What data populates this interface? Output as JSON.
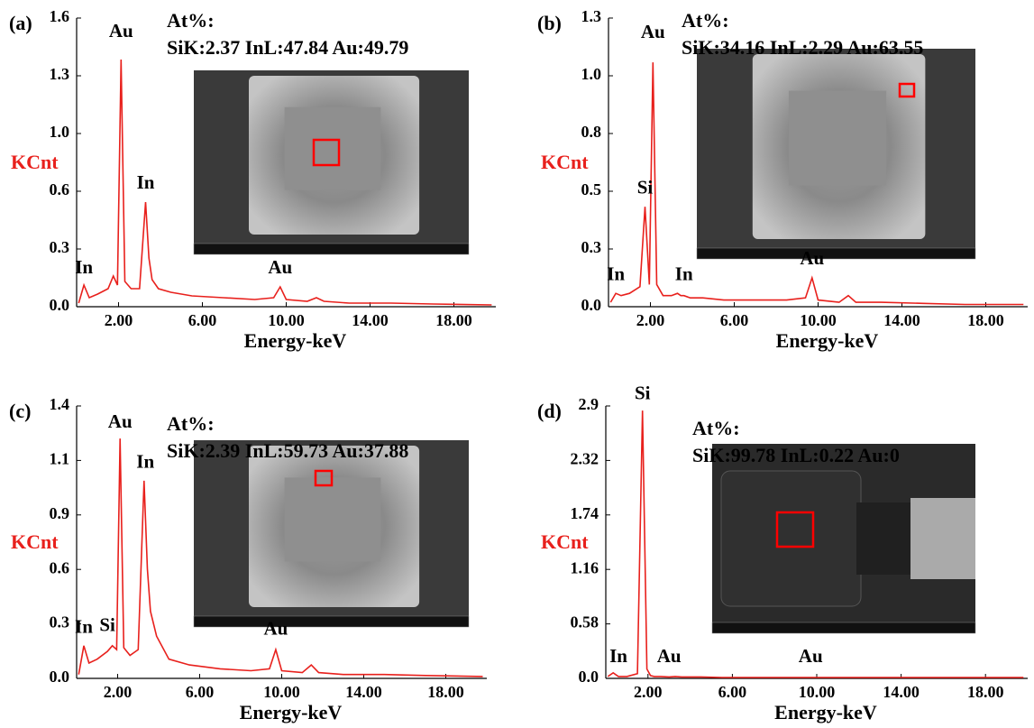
{
  "chart_data": [
    {
      "type": "line",
      "label": "(a)",
      "inset_title": "At%:",
      "inset_text": "SiK:2.37  InL:47.84  Au:49.79",
      "ylabel": "KCnt",
      "xlabel": "Energy-keV",
      "color": "#e8201c",
      "xlim": [
        0,
        20
      ],
      "ylim": [
        0,
        1.6
      ],
      "yticks": [
        {
          "value": 0,
          "label": "0.0"
        },
        {
          "value": 0.32,
          "label": "0.3"
        },
        {
          "value": 0.64,
          "label": "0.6"
        },
        {
          "value": 0.96,
          "label": "1.0"
        },
        {
          "value": 1.28,
          "label": "1.3"
        },
        {
          "value": 1.6,
          "label": "1.6"
        }
      ],
      "xticks": [
        {
          "value": 2,
          "label": "2.00"
        },
        {
          "value": 6,
          "label": "6.00"
        },
        {
          "value": 10,
          "label": "10.00"
        },
        {
          "value": 14,
          "label": "14.00"
        },
        {
          "value": 18,
          "label": "18.00"
        }
      ],
      "x": [
        0.1,
        0.35,
        0.6,
        1.0,
        1.5,
        1.75,
        1.95,
        2.12,
        2.3,
        2.6,
        3.0,
        3.29,
        3.45,
        3.6,
        3.9,
        4.5,
        5.5,
        7,
        8.5,
        9.4,
        9.71,
        10.0,
        11.0,
        11.44,
        11.8,
        13,
        15,
        17,
        19.8
      ],
      "values": [
        0.02,
        0.12,
        0.05,
        0.07,
        0.1,
        0.17,
        0.12,
        1.37,
        0.14,
        0.1,
        0.1,
        0.58,
        0.27,
        0.15,
        0.1,
        0.08,
        0.06,
        0.05,
        0.04,
        0.05,
        0.11,
        0.04,
        0.03,
        0.05,
        0.03,
        0.02,
        0.02,
        0.015,
        0.01
      ],
      "annotations": [
        {
          "text": "Au",
          "x": 2.12,
          "y": 1.52
        },
        {
          "text": "In",
          "x": 3.29,
          "y": 0.68
        },
        {
          "text": "In",
          "x": 0.35,
          "y": 0.21
        },
        {
          "text": "Au",
          "x": 9.71,
          "y": 0.21
        }
      ]
    },
    {
      "type": "line",
      "label": "(b)",
      "inset_title": "At%:",
      "inset_text": "SiK:34.16  InL:2.29  Au:63.55",
      "ylabel": "KCnt",
      "xlabel": "Energy-keV",
      "color": "#e8201c",
      "xlim": [
        0,
        20
      ],
      "ylim": [
        0,
        1.3
      ],
      "yticks": [
        {
          "value": 0,
          "label": "0.0"
        },
        {
          "value": 0.26,
          "label": "0.3"
        },
        {
          "value": 0.52,
          "label": "0.5"
        },
        {
          "value": 0.78,
          "label": "0.8"
        },
        {
          "value": 1.04,
          "label": "1.0"
        },
        1.3
      ],
      "xticks": [
        {
          "value": 2,
          "label": "2.00"
        },
        {
          "value": 6,
          "label": "6.00"
        },
        {
          "value": 10,
          "label": "10.00"
        },
        {
          "value": 14,
          "label": "14.00"
        },
        {
          "value": 18,
          "label": "18.00"
        }
      ],
      "x": [
        0.1,
        0.35,
        0.6,
        1.0,
        1.5,
        1.74,
        1.95,
        2.12,
        2.3,
        2.6,
        3.0,
        3.29,
        3.45,
        3.6,
        3.9,
        4.5,
        5.5,
        7,
        8.5,
        9.4,
        9.71,
        10.0,
        11.0,
        11.44,
        11.8,
        13,
        15,
        17,
        19.8
      ],
      "values": [
        0.02,
        0.06,
        0.05,
        0.06,
        0.09,
        0.45,
        0.1,
        1.1,
        0.1,
        0.05,
        0.05,
        0.06,
        0.05,
        0.05,
        0.04,
        0.04,
        0.03,
        0.03,
        0.03,
        0.04,
        0.13,
        0.03,
        0.02,
        0.05,
        0.02,
        0.02,
        0.015,
        0.01,
        0.01
      ],
      "annotations": [
        {
          "text": "Au",
          "x": 2.12,
          "y": 1.23
        },
        {
          "text": "Si",
          "x": 1.74,
          "y": 0.53
        },
        {
          "text": "In",
          "x": 0.35,
          "y": 0.14
        },
        {
          "text": "In",
          "x": 3.6,
          "y": 0.14
        },
        {
          "text": "Au",
          "x": 9.71,
          "y": 0.21
        }
      ]
    },
    {
      "type": "line",
      "label": "(c)",
      "inset_title": "At%:",
      "inset_text": "SiK:2.39  InL:59.73  Au:37.88",
      "ylabel": "KCnt",
      "xlabel": "Energy-keV",
      "color": "#e8201c",
      "xlim": [
        0,
        20
      ],
      "ylim": [
        0,
        1.42
      ],
      "yticks": [
        {
          "value": 0,
          "label": "0.0"
        },
        {
          "value": 0.284,
          "label": "0.3"
        },
        {
          "value": 0.568,
          "label": "0.6"
        },
        {
          "value": 0.852,
          "label": "0.9"
        },
        {
          "value": 1.136,
          "label": "1.1"
        },
        {
          "value": 1.42,
          "label": "1.4"
        }
      ],
      "xticks": [
        {
          "value": 2,
          "label": "2.00"
        },
        {
          "value": 6,
          "label": "6.00"
        },
        {
          "value": 10,
          "label": "10.00"
        },
        {
          "value": 14,
          "label": "14.00"
        },
        {
          "value": 18,
          "label": "18.00"
        }
      ],
      "x": [
        0.1,
        0.35,
        0.6,
        1.0,
        1.5,
        1.74,
        1.95,
        2.12,
        2.3,
        2.6,
        3.0,
        3.29,
        3.45,
        3.6,
        3.9,
        4.5,
        5.5,
        7,
        8.5,
        9.4,
        9.71,
        10.0,
        11.0,
        11.44,
        11.8,
        13,
        15,
        17,
        19.8
      ],
      "values": [
        0.02,
        0.17,
        0.08,
        0.1,
        0.14,
        0.17,
        0.15,
        1.25,
        0.16,
        0.12,
        0.15,
        1.03,
        0.57,
        0.35,
        0.22,
        0.1,
        0.07,
        0.05,
        0.04,
        0.05,
        0.15,
        0.04,
        0.03,
        0.07,
        0.03,
        0.02,
        0.02,
        0.015,
        0.01
      ],
      "annotations": [
        {
          "text": "Au",
          "x": 2.12,
          "y": 1.33
        },
        {
          "text": "In",
          "x": 3.35,
          "y": 1.12
        },
        {
          "text": "In",
          "x": 0.35,
          "y": 0.26
        },
        {
          "text": "Si",
          "x": 1.5,
          "y": 0.27
        },
        {
          "text": "Au",
          "x": 9.71,
          "y": 0.25
        }
      ]
    },
    {
      "type": "line",
      "label": "(d)",
      "inset_title": "At%:",
      "inset_text": "SiK:99.78  InL:0.22  Au:0",
      "ylabel": "KCnt",
      "xlabel": "Energy-keV",
      "color": "#e8201c",
      "xlim": [
        0,
        20
      ],
      "ylim": [
        0,
        2.9
      ],
      "yticks": [
        {
          "value": 0,
          "label": "0.0"
        },
        0.58,
        1.16,
        1.74,
        2.32,
        2.9
      ],
      "xticks": [
        {
          "value": 2,
          "label": "2.00"
        },
        {
          "value": 6,
          "label": "6.00"
        },
        {
          "value": 10,
          "label": "10.00"
        },
        {
          "value": 14,
          "label": "14.00"
        },
        {
          "value": 18,
          "label": "18.00"
        }
      ],
      "x": [
        0.1,
        0.35,
        0.6,
        1.0,
        1.5,
        1.74,
        1.95,
        2.12,
        2.3,
        2.6,
        3.0,
        3.29,
        3.6,
        4.5,
        5.5,
        7,
        8.5,
        9.71,
        11.0,
        13,
        15,
        17,
        19.8
      ],
      "values": [
        0.02,
        0.06,
        0.02,
        0.02,
        0.05,
        2.85,
        0.1,
        0.03,
        0.02,
        0.02,
        0.015,
        0.02,
        0.015,
        0.015,
        0.01,
        0.01,
        0.01,
        0.01,
        0.01,
        0.01,
        0.01,
        0.01,
        0.01
      ],
      "annotations": [
        {
          "text": "Si",
          "x": 1.74,
          "y": 3.02
        },
        {
          "text": "In",
          "x": 0.6,
          "y": 0.22
        },
        {
          "text": "Au",
          "x": 3.0,
          "y": 0.22
        },
        {
          "text": "Au",
          "x": 9.71,
          "y": 0.22
        }
      ]
    }
  ]
}
